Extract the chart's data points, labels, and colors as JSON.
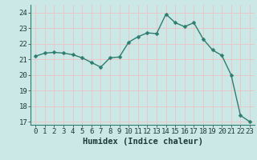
{
  "x": [
    0,
    1,
    2,
    3,
    4,
    5,
    6,
    7,
    8,
    9,
    10,
    11,
    12,
    13,
    14,
    15,
    16,
    17,
    18,
    19,
    20,
    21,
    22,
    23
  ],
  "y": [
    21.2,
    21.4,
    21.45,
    21.4,
    21.3,
    21.1,
    20.8,
    20.5,
    21.1,
    21.15,
    22.1,
    22.45,
    22.7,
    22.65,
    23.9,
    23.35,
    23.1,
    23.35,
    22.3,
    21.6,
    21.25,
    20.0,
    17.4,
    17.0
  ],
  "line_color": "#2e7d6e",
  "marker": "D",
  "marker_size": 2.5,
  "bg_color": "#cce8e6",
  "grid_color": "#afd4d0",
  "pink_grid_color": "#e8c8c8",
  "xlabel": "Humidex (Indice chaleur)",
  "ylim": [
    16.8,
    24.5
  ],
  "xlim": [
    -0.5,
    23.5
  ],
  "yticks": [
    17,
    18,
    19,
    20,
    21,
    22,
    23,
    24
  ],
  "xticks": [
    0,
    1,
    2,
    3,
    4,
    5,
    6,
    7,
    8,
    9,
    10,
    11,
    12,
    13,
    14,
    15,
    16,
    17,
    18,
    19,
    20,
    21,
    22,
    23
  ],
  "xlabel_fontsize": 7.5,
  "tick_fontsize": 6.5,
  "line_width": 1.0
}
